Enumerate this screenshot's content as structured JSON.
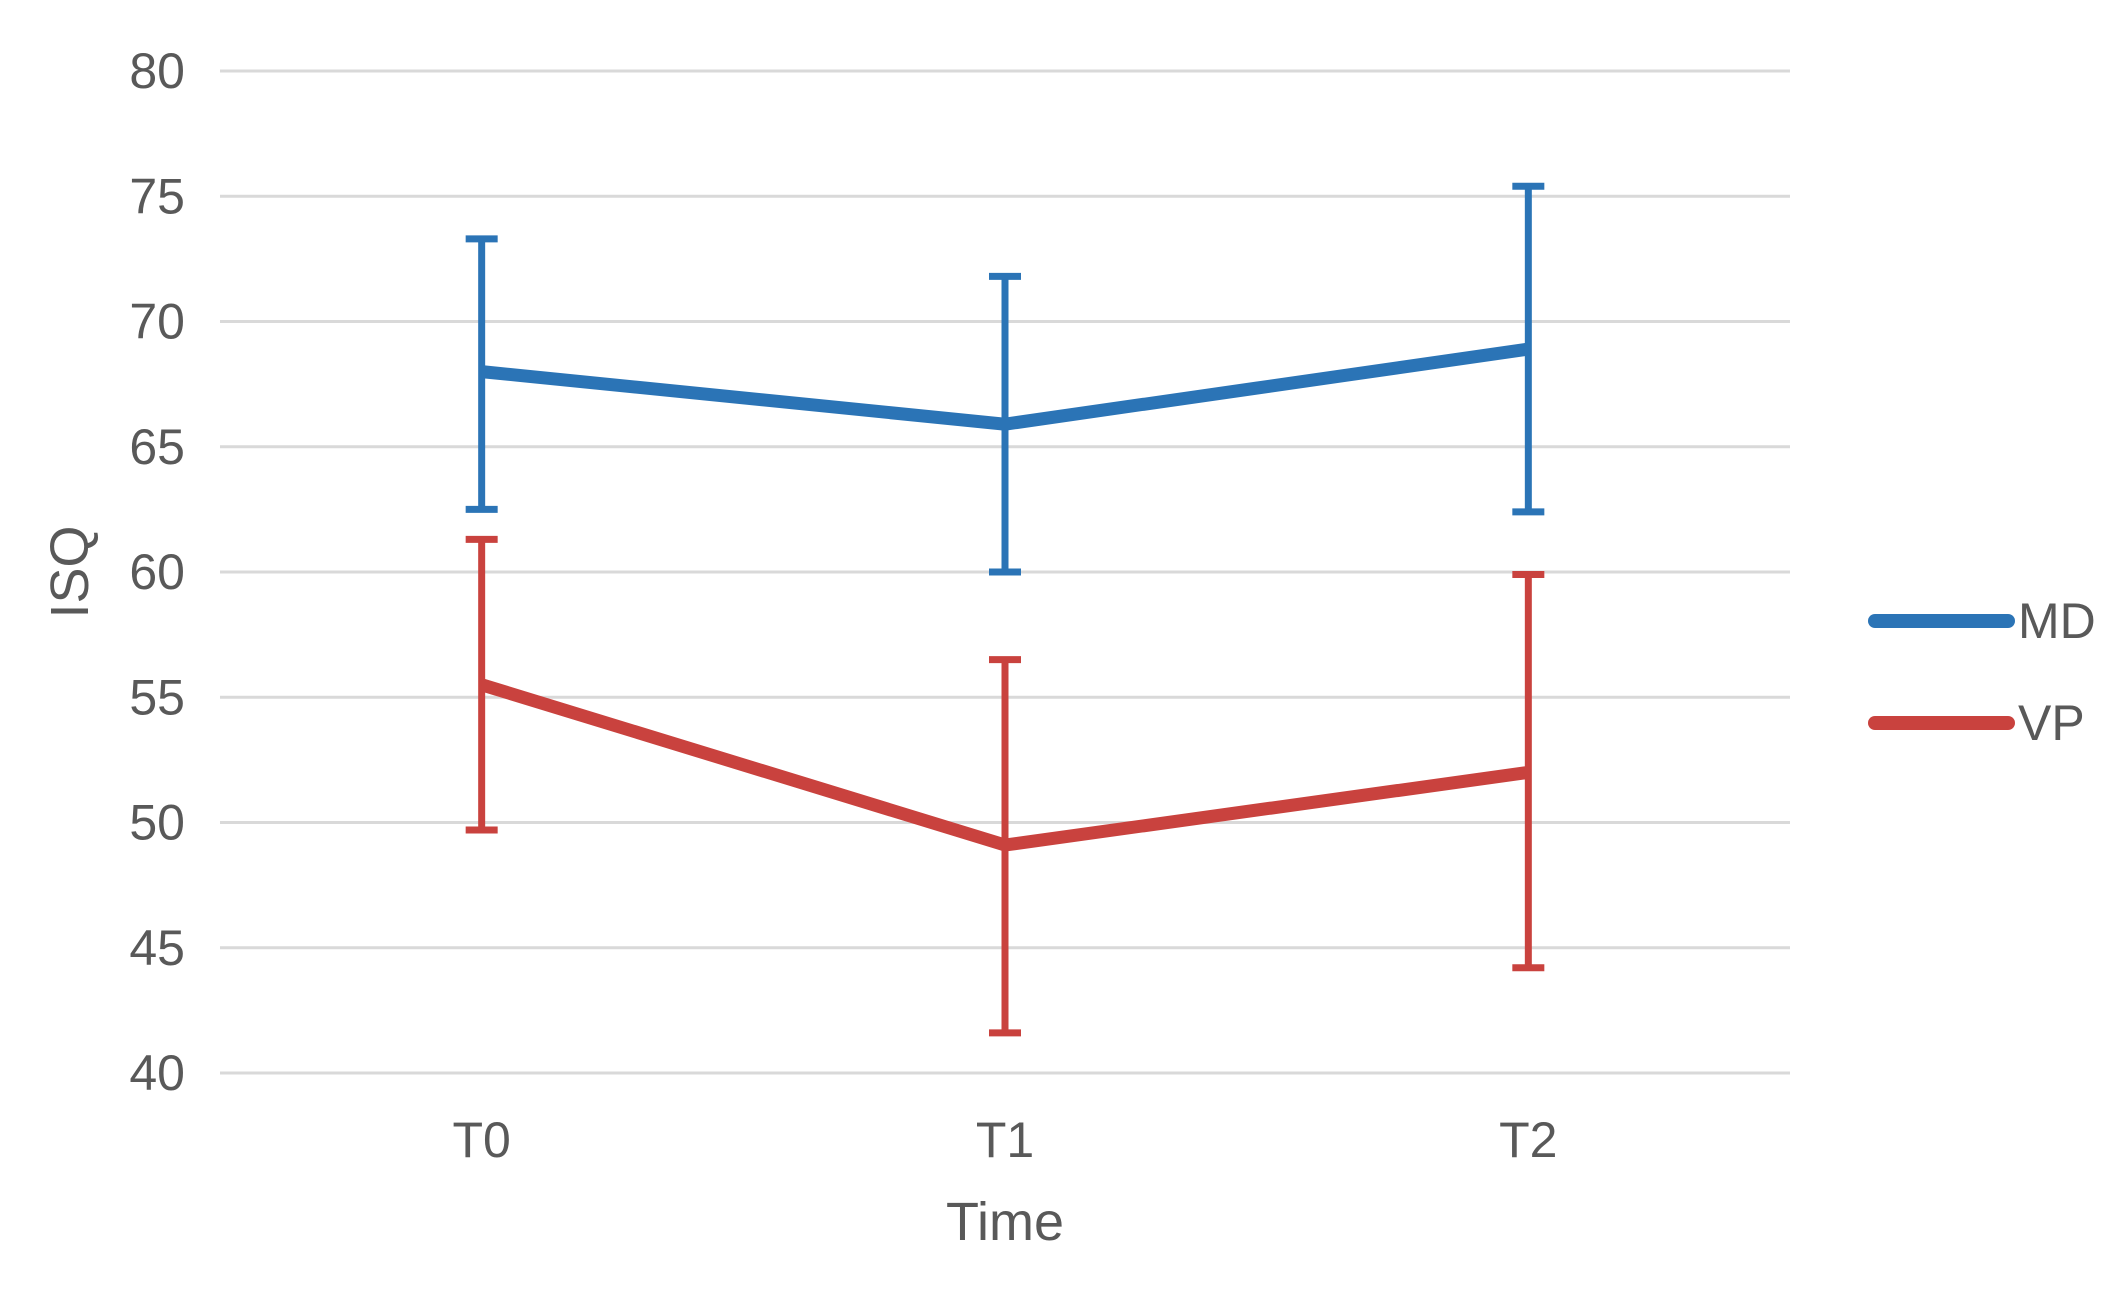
{
  "chart_data": {
    "type": "line",
    "title": "",
    "xlabel": "Time",
    "ylabel": "ISQ",
    "categories": [
      "T0",
      "T1",
      "T2"
    ],
    "ylim": [
      40,
      80
    ],
    "yticks": [
      80,
      75,
      70,
      65,
      60,
      55,
      50,
      45,
      40
    ],
    "grid": "horizontal",
    "error_bars": true,
    "legend_position": "right-center",
    "series": [
      {
        "name": "MD",
        "color": "#2B74B6",
        "values": [
          68.0,
          65.9,
          68.9
        ],
        "upper": [
          73.3,
          71.8,
          75.4
        ],
        "lower": [
          62.5,
          60.0,
          62.4
        ]
      },
      {
        "name": "VP",
        "color": "#C9423E",
        "values": [
          55.5,
          49.1,
          52.0
        ],
        "upper": [
          61.3,
          56.5,
          59.9
        ],
        "lower": [
          49.7,
          41.6,
          44.2
        ]
      }
    ],
    "style": {
      "grid_color": "#D9D9D9",
      "text_color": "#595959",
      "background": "#FFFFFF",
      "tick_font_size": 50,
      "axis_title_font_size": 54,
      "legend_font_size": 50
    }
  }
}
